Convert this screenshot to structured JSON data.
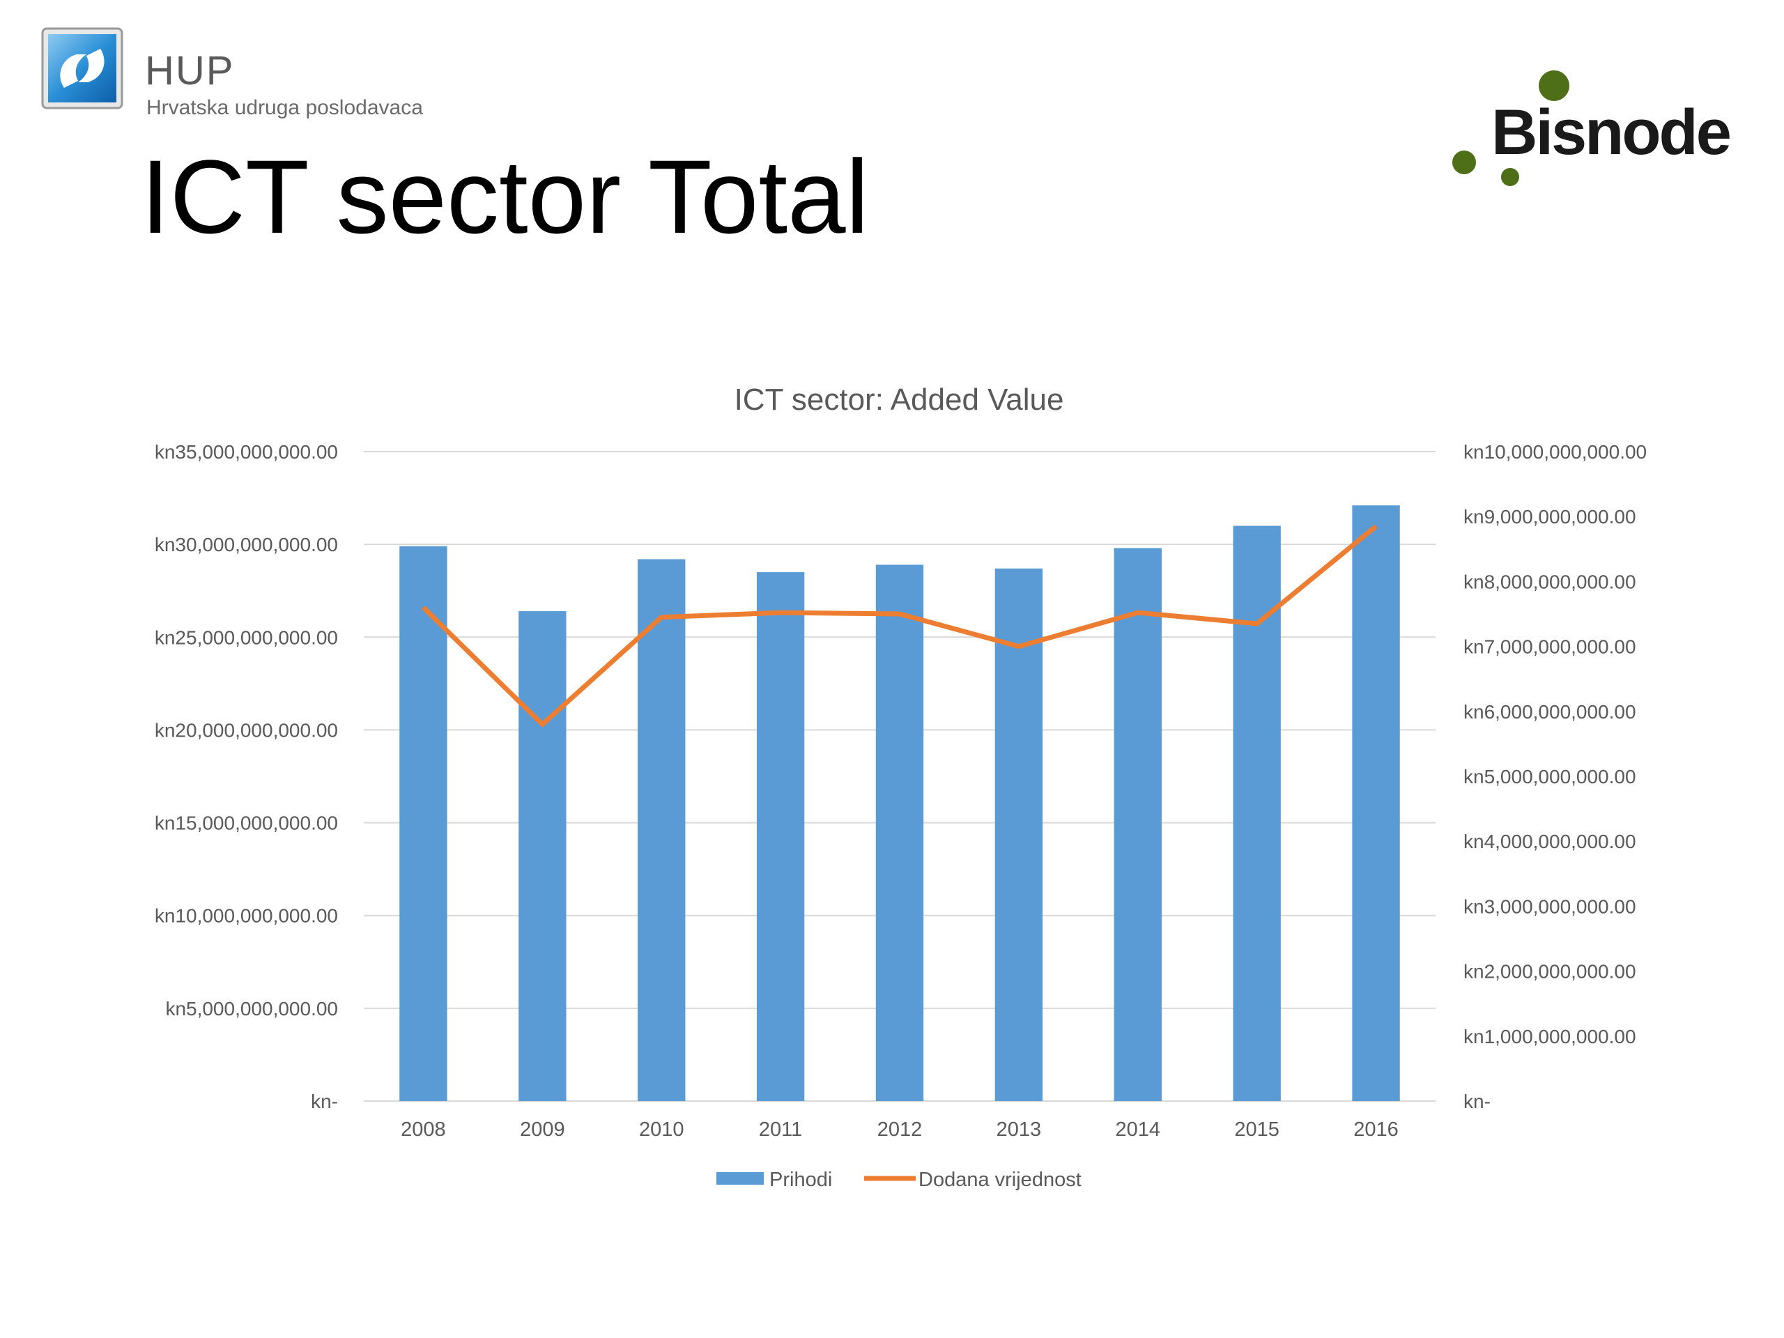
{
  "header": {
    "hup_brand": "HUP",
    "hup_tagline": "Hrvatska udruga poslodavaca",
    "bisnode_brand": "Bisnode",
    "title": "ICT sector Total"
  },
  "colors": {
    "bar": "#5b9bd5",
    "line": "#ed7d31",
    "grid": "#d9d9d9",
    "axis_text": "#595959",
    "bisnode_green": "#4e6e17",
    "hup_blue": "#2a8fd6"
  },
  "chart_data": {
    "type": "bar",
    "title": "ICT sector: Added Value",
    "categories": [
      "2008",
      "2009",
      "2010",
      "2011",
      "2012",
      "2013",
      "2014",
      "2015",
      "2016"
    ],
    "series": [
      {
        "name": "Prihodi",
        "type": "bar",
        "axis": "left",
        "values": [
          29900000000,
          26400000000,
          29200000000,
          28500000000,
          28900000000,
          28700000000,
          29800000000,
          31000000000,
          32100000000
        ]
      },
      {
        "name": "Dodana vrijednost",
        "type": "line",
        "axis": "right",
        "values": [
          7600000000,
          5800000000,
          7450000000,
          7520000000,
          7500000000,
          7000000000,
          7520000000,
          7350000000,
          8850000000
        ]
      }
    ],
    "y_left": {
      "ylim": [
        0,
        35000000000
      ],
      "ticks": [
        0,
        5000000000,
        10000000000,
        15000000000,
        20000000000,
        25000000000,
        30000000000,
        35000000000
      ],
      "tick_labels": [
        "kn-",
        "kn5,000,000,000.00",
        "kn10,000,000,000.00",
        "kn15,000,000,000.00",
        "kn20,000,000,000.00",
        "kn25,000,000,000.00",
        "kn30,000,000,000.00",
        "kn35,000,000,000.00"
      ]
    },
    "y_right": {
      "ylim": [
        0,
        10000000000
      ],
      "ticks": [
        0,
        1000000000,
        2000000000,
        3000000000,
        4000000000,
        5000000000,
        6000000000,
        7000000000,
        8000000000,
        9000000000,
        10000000000
      ],
      "tick_labels": [
        "kn-",
        "kn1,000,000,000.00",
        "kn2,000,000,000.00",
        "kn3,000,000,000.00",
        "kn4,000,000,000.00",
        "kn5,000,000,000.00",
        "kn6,000,000,000.00",
        "kn7,000,000,000.00",
        "kn8,000,000,000.00",
        "kn9,000,000,000.00",
        "kn10,000,000,000.00"
      ]
    },
    "grid": true,
    "legend": "bottom"
  }
}
